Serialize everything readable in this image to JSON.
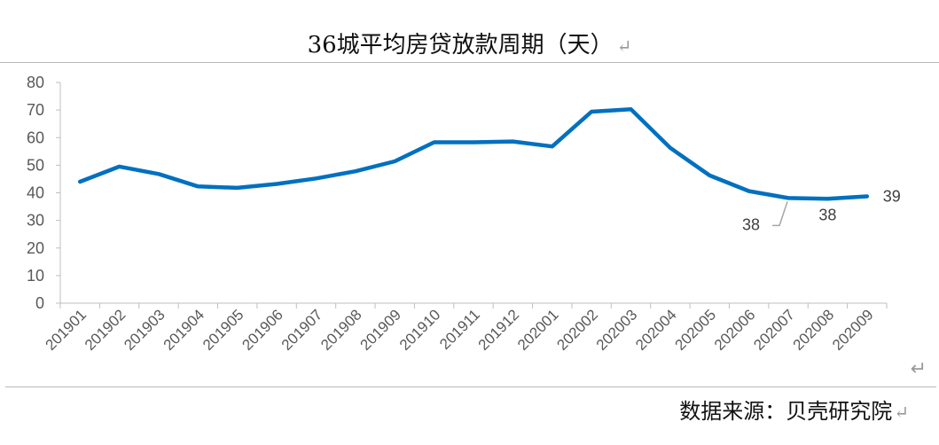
{
  "title": "36城平均房贷放款周期（天）",
  "return_mark": "↵",
  "source": "数据来源：贝壳研究院",
  "chart_data": {
    "type": "line",
    "title": "36城平均房贷放款周期（天）",
    "xlabel": "",
    "ylabel": "",
    "ylim": [
      0,
      80
    ],
    "yticks": [
      0,
      10,
      20,
      30,
      40,
      50,
      60,
      70,
      80
    ],
    "grid": false,
    "legend": "none",
    "line_color": "#0070c0",
    "categories": [
      "201901",
      "201902",
      "201903",
      "201904",
      "201905",
      "201906",
      "201907",
      "201908",
      "201909",
      "201910",
      "201911",
      "201912",
      "202001",
      "202002",
      "202003",
      "202004",
      "202005",
      "202006",
      "202007",
      "202008",
      "202009"
    ],
    "series": [
      {
        "values": [
          44,
          49.5,
          46.8,
          42.3,
          41.8,
          43.2,
          45.2,
          47.8,
          51.4,
          58.3,
          58.3,
          58.6,
          56.8,
          69.4,
          70.3,
          56.3,
          46.3,
          40.6,
          38.1,
          37.8,
          38.7
        ]
      }
    ],
    "data_labels": [
      {
        "category": "202007",
        "text": "38"
      },
      {
        "category": "202008",
        "text": "38"
      },
      {
        "category": "202009",
        "text": "39"
      }
    ]
  }
}
